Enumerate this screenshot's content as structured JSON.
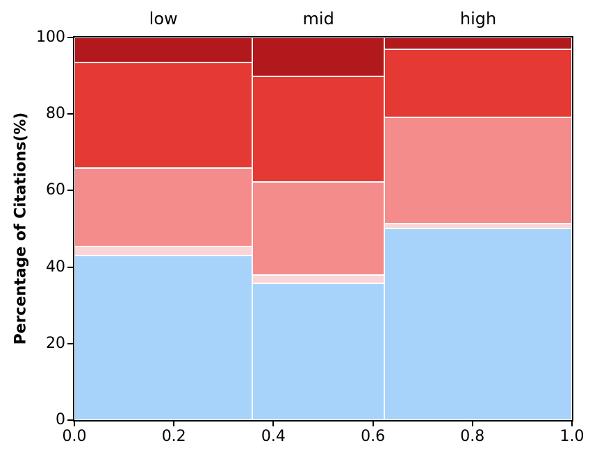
{
  "chart_data": {
    "type": "bar",
    "subtype": "stacked-percentage-mosaic",
    "title": "",
    "xlabel": "",
    "ylabel": "Percentage of Citations(%)",
    "xlim": [
      0.0,
      1.0
    ],
    "ylim": [
      0,
      100
    ],
    "grid": false,
    "legend": null,
    "background": "#ffffff",
    "spine_color": "#000000",
    "group_labels": [
      "low",
      "mid",
      "high"
    ],
    "x_tick_labels": [
      "0.0",
      "0.2",
      "0.4",
      "0.6",
      "0.8",
      "1.0"
    ],
    "x_tick_values": [
      0.0,
      0.2,
      0.4,
      0.6,
      0.8,
      1.0
    ],
    "y_tick_labels": [
      "0",
      "20",
      "40",
      "60",
      "80",
      "100"
    ],
    "y_tick_values": [
      0,
      20,
      40,
      60,
      80,
      100
    ],
    "segment_color_names": [
      "light-blue",
      "light-pink",
      "salmon",
      "red",
      "dark-red"
    ],
    "segment_colors": [
      "#A7D3FA",
      "#FAD4D6",
      "#F48C8B",
      "#E53A33",
      "#B2191D"
    ],
    "segment_edge_color": "#ffffff",
    "groups": [
      {
        "label": "low",
        "x0": 0.0,
        "x1": 0.358,
        "segments": [
          43.0,
          2.4,
          20.4,
          27.7,
          6.5
        ]
      },
      {
        "label": "mid",
        "x0": 0.358,
        "x1": 0.623,
        "segments": [
          35.7,
          2.2,
          24.3,
          27.7,
          10.1
        ]
      },
      {
        "label": "high",
        "x0": 0.623,
        "x1": 1.0,
        "segments": [
          50.1,
          1.3,
          27.7,
          17.9,
          3.0
        ]
      }
    ]
  }
}
